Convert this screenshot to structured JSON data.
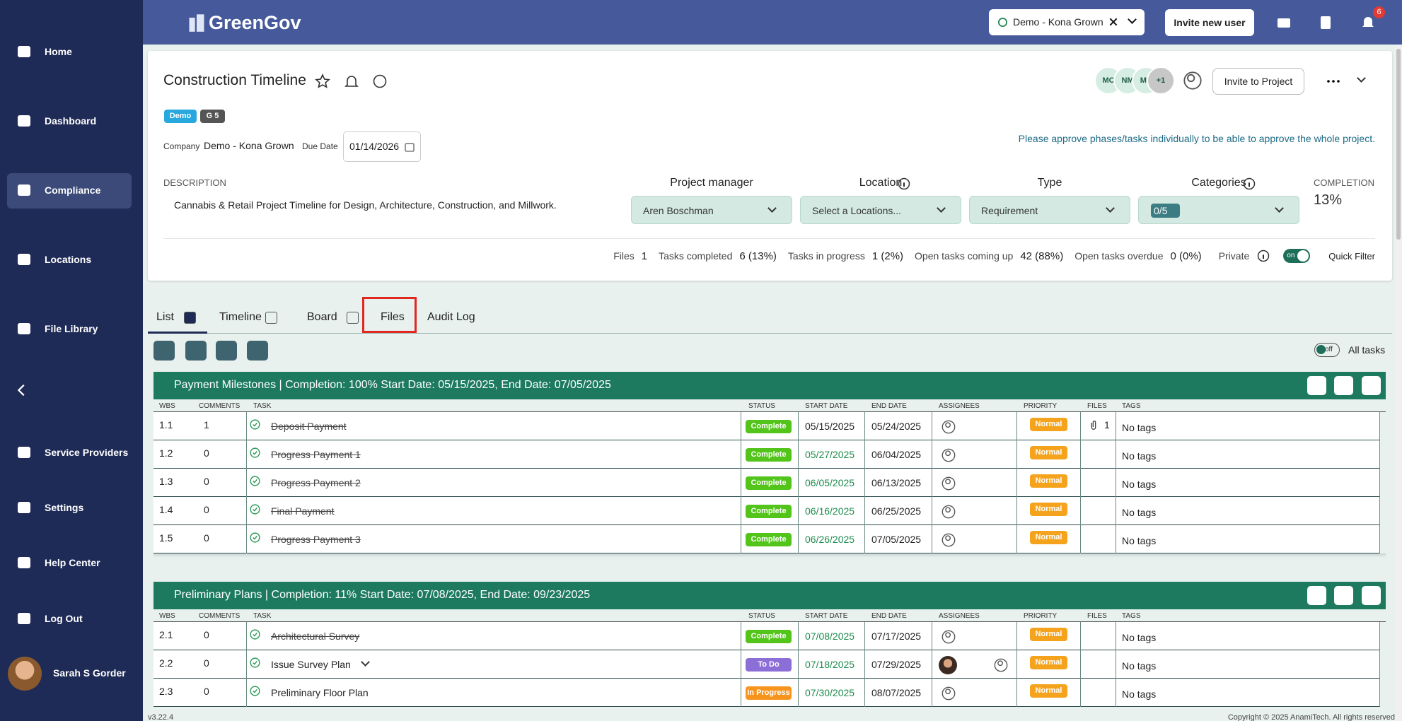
{
  "sidebar": {
    "nav": [
      "Home",
      "Dashboard",
      "Compliance",
      "Locations",
      "File Library",
      "Service Providers",
      "Settings",
      "Help Center",
      "Log Out"
    ],
    "active": "Compliance",
    "user": "Sarah S Gorder",
    "version": "v3.22.4"
  },
  "header": {
    "brand": "GreenGov",
    "org": "Demo - Kona Grown",
    "invite": "Invite new user",
    "notifications": 6
  },
  "project": {
    "title": "Construction Timeline",
    "tags": [
      "Demo",
      "G 5"
    ],
    "company_label": "Company",
    "company": "Demo - Kona Grown",
    "due_label": "Due Date",
    "due": "01/14/2026",
    "approve_note": "Please approve phases/tasks individually to be able to approve the whole project.",
    "members": [
      "MC",
      "NM",
      "MV",
      "+1"
    ],
    "invite": "Invite to Project",
    "description_label": "DESCRIPTION",
    "description": "Cannabis & Retail Project Timeline for Design, Architecture, Construction, and Millwork.",
    "fields": [
      {
        "label": "Project manager",
        "value": "Aren Boschman"
      },
      {
        "label": "Location",
        "value": "Select a Locations..."
      },
      {
        "label": "Type",
        "value": "Requirement"
      },
      {
        "label": "Categories",
        "value": "0/5"
      }
    ],
    "completion_label": "COMPLETION",
    "completion": "13%",
    "stats": [
      {
        "label": "Files",
        "value": "1"
      },
      {
        "label": "Tasks completed",
        "value": "6 (13%)"
      },
      {
        "label": "Tasks in progress",
        "value": "1 (2%)"
      },
      {
        "label": "Open tasks coming up",
        "value": "42 (88%)"
      },
      {
        "label": "Open tasks overdue",
        "value": "0 (0%)"
      }
    ],
    "private_label": "Private",
    "private_toggle": "on",
    "quick_filter": "Quick Filter"
  },
  "tabs": [
    "List",
    "Timeline",
    "Board",
    "Files",
    "Audit Log"
  ],
  "toolbar": {
    "toggle": "off",
    "all_tasks": "All tasks"
  },
  "columns": [
    "WBS",
    "COMMENTS",
    "TASK",
    "STATUS",
    "START DATE",
    "END DATE",
    "ASSIGNEES",
    "PRIORITY",
    "FILES",
    "TAGS"
  ],
  "phases": [
    {
      "title": "Payment Milestones  | Completion: 100%  Start Date: 05/15/2025, End Date: 07/05/2025",
      "tasks": [
        {
          "wbs": "1.1",
          "comments": "1",
          "task": "Deposit Payment",
          "completed": true,
          "status": "Complete",
          "status_color": "#52c41a",
          "start": "05/15/2025",
          "start_color": "#222222",
          "end": "05/24/2025",
          "priority": "Normal",
          "files": "1",
          "tags": "No tags"
        },
        {
          "wbs": "1.2",
          "comments": "0",
          "task": "Progress Payment 1",
          "completed": true,
          "status": "Complete",
          "status_color": "#52c41a",
          "start": "05/27/2025",
          "start_color": "#1e8c4e",
          "end": "06/04/2025",
          "priority": "Normal",
          "tags": "No tags"
        },
        {
          "wbs": "1.3",
          "comments": "0",
          "task": "Progress Payment 2",
          "completed": true,
          "status": "Complete",
          "status_color": "#52c41a",
          "start": "06/05/2025",
          "start_color": "#1e8c4e",
          "end": "06/13/2025",
          "priority": "Normal",
          "tags": "No tags"
        },
        {
          "wbs": "1.4",
          "comments": "0",
          "task": "Final Payment",
          "completed": true,
          "status": "Complete",
          "status_color": "#52c41a",
          "start": "06/16/2025",
          "start_color": "#1e8c4e",
          "end": "06/25/2025",
          "priority": "Normal",
          "tags": "No tags"
        },
        {
          "wbs": "1.5",
          "comments": "0",
          "task": "Progress Payment 3",
          "completed": true,
          "status": "Complete",
          "status_color": "#52c41a",
          "start": "06/26/2025",
          "start_color": "#1e8c4e",
          "end": "07/05/2025",
          "priority": "Normal",
          "tags": "No tags"
        }
      ]
    },
    {
      "title": "Preliminary Plans  | Completion: 11%  Start Date: 07/08/2025, End Date: 09/23/2025",
      "tasks": [
        {
          "wbs": "2.1",
          "comments": "0",
          "task": "Architectural Survey",
          "completed": true,
          "status": "Complete",
          "status_color": "#52c41a",
          "start": "07/08/2025",
          "start_color": "#1e8c4e",
          "end": "07/17/2025",
          "priority": "Normal",
          "tags": "No tags"
        },
        {
          "wbs": "2.2",
          "comments": "0",
          "task": "Issue Survey Plan",
          "completed": false,
          "expandable": true,
          "status": "To Do",
          "status_color": "#8c6fd6",
          "start": "07/18/2025",
          "start_color": "#1e8c4e",
          "end": "07/29/2025",
          "assignee_photo": true,
          "priority": "Normal",
          "tags": "No tags"
        },
        {
          "wbs": "2.3",
          "comments": "0",
          "task": "Preliminary Floor Plan",
          "completed": false,
          "status": "In Progress",
          "status_color": "#f7941d",
          "start": "07/30/2025",
          "start_color": "#1e8c4e",
          "end": "08/07/2025",
          "priority": "Normal",
          "tags": "No tags"
        }
      ]
    }
  ],
  "footer": {
    "copyright": "Copyright © 2025 AnamiTech. All rights reserved"
  }
}
